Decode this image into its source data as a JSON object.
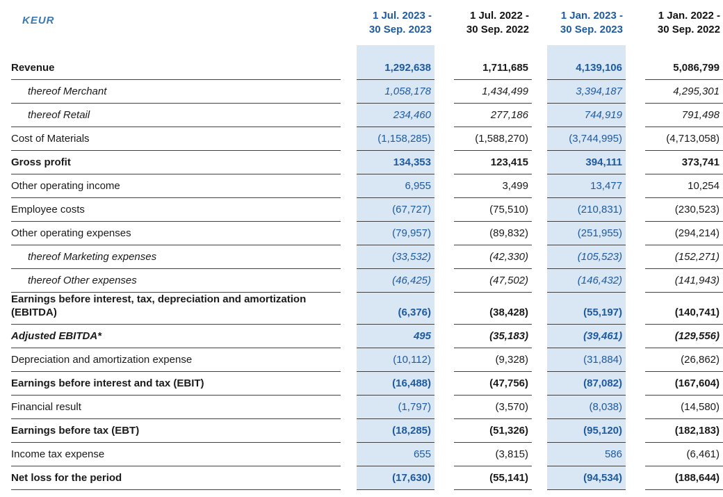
{
  "table": {
    "unit_label": "KEUR",
    "columns": [
      {
        "label_line1": "1 Jul. 2023 -",
        "label_line2": "30 Sep. 2023",
        "highlight": true
      },
      {
        "label_line1": "1 Jul. 2022 -",
        "label_line2": "30 Sep. 2022",
        "highlight": false
      },
      {
        "label_line1": "1 Jan. 2023 -",
        "label_line2": "30 Sep. 2023",
        "highlight": true
      },
      {
        "label_line1": "1 Jan. 2022 -",
        "label_line2": "30 Sep. 2022",
        "highlight": false
      }
    ],
    "rows": [
      {
        "label": "Revenue",
        "style": "bold",
        "values": [
          "1,292,638",
          "1,711,685",
          "4,139,106",
          "5,086,799"
        ]
      },
      {
        "label": "thereof Merchant",
        "style": "sub",
        "values": [
          "1,058,178",
          "1,434,499",
          "3,394,187",
          "4,295,301"
        ]
      },
      {
        "label": "thereof Retail",
        "style": "sub",
        "values": [
          "234,460",
          "277,186",
          "744,919",
          "791,498"
        ]
      },
      {
        "label": "Cost of Materials",
        "style": "normal",
        "values": [
          "(1,158,285)",
          "(1,588,270)",
          "(3,744,995)",
          "(4,713,058)"
        ]
      },
      {
        "label": "Gross profit",
        "style": "bold",
        "values": [
          "134,353",
          "123,415",
          "394,111",
          "373,741"
        ]
      },
      {
        "label": "Other operating income",
        "style": "normal",
        "values": [
          "6,955",
          "3,499",
          "13,477",
          "10,254"
        ]
      },
      {
        "label": "Employee costs",
        "style": "normal",
        "values": [
          "(67,727)",
          "(75,510)",
          "(210,831)",
          "(230,523)"
        ]
      },
      {
        "label": "Other operating expenses",
        "style": "normal",
        "values": [
          "(79,957)",
          "(89,832)",
          "(251,955)",
          "(294,214)"
        ]
      },
      {
        "label": "thereof Marketing expenses",
        "style": "sub",
        "values": [
          "(33,532)",
          "(42,330)",
          "(105,523)",
          "(152,271)"
        ]
      },
      {
        "label": "thereof Other expenses",
        "style": "sub",
        "values": [
          "(46,425)",
          "(47,502)",
          "(146,432)",
          "(141,943)"
        ]
      },
      {
        "label": "Earnings before interest, tax, depreciation and amortization (EBITDA)",
        "style": "bold",
        "values": [
          "(6,376)",
          "(38,428)",
          "(55,197)",
          "(140,741)"
        ]
      },
      {
        "label": "Adjusted EBITDA*",
        "style": "bold-italic",
        "values": [
          "495",
          "(35,183)",
          "(39,461)",
          "(129,556)"
        ]
      },
      {
        "label": "Depreciation and amortization expense",
        "style": "normal",
        "values": [
          "(10,112)",
          "(9,328)",
          "(31,884)",
          "(26,862)"
        ]
      },
      {
        "label": "Earnings before interest and tax (EBIT)",
        "style": "bold",
        "values": [
          "(16,488)",
          "(47,756)",
          "(87,082)",
          "(167,604)"
        ]
      },
      {
        "label": "Financial result",
        "style": "normal",
        "values": [
          "(1,797)",
          "(3,570)",
          "(8,038)",
          "(14,580)"
        ]
      },
      {
        "label": "Earnings before tax (EBT)",
        "style": "bold",
        "values": [
          "(18,285)",
          "(51,326)",
          "(95,120)",
          "(182,183)"
        ]
      },
      {
        "label": "Income tax expense",
        "style": "normal",
        "values": [
          "655",
          "(3,815)",
          "586",
          "(6,461)"
        ]
      },
      {
        "label": "Net loss for the period",
        "style": "bold",
        "values": [
          "(17,630)",
          "(55,141)",
          "(94,534)",
          "(188,644)"
        ]
      }
    ],
    "colors": {
      "highlight_bg": "#d9e6f4",
      "highlight_text": "#1d5a9f",
      "text": "#1a1a1a",
      "rule": "#3f3f3f"
    }
  }
}
